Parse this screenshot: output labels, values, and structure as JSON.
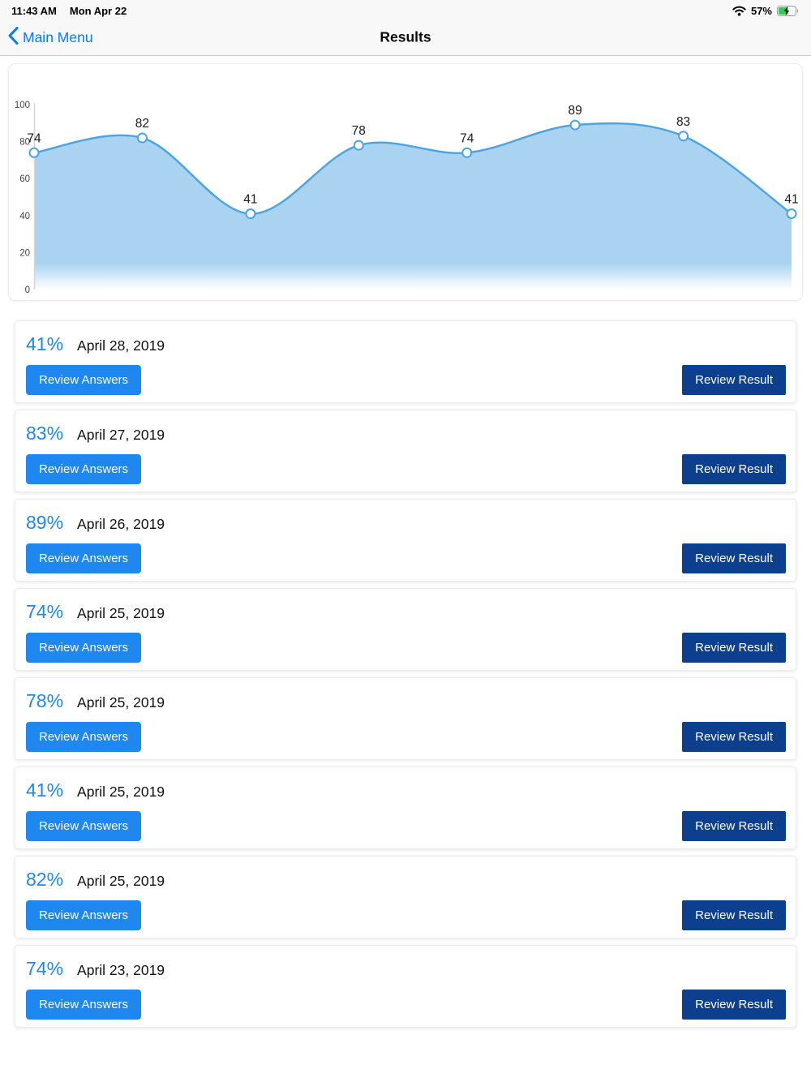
{
  "status_bar": {
    "time": "11:43 AM",
    "date": "Mon Apr 22",
    "battery_percent": "57%",
    "icons": [
      "wifi-icon",
      "battery-charging-icon"
    ]
  },
  "nav": {
    "back_label": "Main Menu",
    "title": "Results"
  },
  "chart_data": {
    "type": "area",
    "title": "",
    "xlabel": "",
    "ylabel": "",
    "values": [
      74,
      82,
      41,
      78,
      74,
      89,
      83,
      41
    ],
    "point_labels": [
      "74",
      "82",
      "41",
      "78",
      "74",
      "89",
      "83",
      "41"
    ],
    "yticks": [
      0,
      20,
      40,
      60,
      80,
      100
    ],
    "ylim": [
      0,
      100
    ],
    "legend": "none",
    "grid": "y-axis-line-only",
    "line_color": "#4ba3e3",
    "fill_color": "#a9d3f1",
    "point_fill": "#ffffff",
    "axis_color": "#d6d6d6",
    "tick_color": "#444444",
    "label_color": "#1b1b1b"
  },
  "results": [
    {
      "score": "41%",
      "date": "April 28, 2019"
    },
    {
      "score": "83%",
      "date": "April 27, 2019"
    },
    {
      "score": "89%",
      "date": "April 26, 2019"
    },
    {
      "score": "74%",
      "date": "April 25, 2019"
    },
    {
      "score": "78%",
      "date": "April 25, 2019"
    },
    {
      "score": "41%",
      "date": "April 25, 2019"
    },
    {
      "score": "82%",
      "date": "April 25, 2019"
    },
    {
      "score": "74%",
      "date": "April 23, 2019"
    }
  ],
  "buttons": {
    "review_answers": "Review Answers",
    "review_result": "Review Result"
  },
  "colors": {
    "accent_blue": "#1e87f0",
    "dark_blue": "#0d3f8f",
    "ios_link_blue": "#077aff",
    "battery_green": "#34c759"
  }
}
